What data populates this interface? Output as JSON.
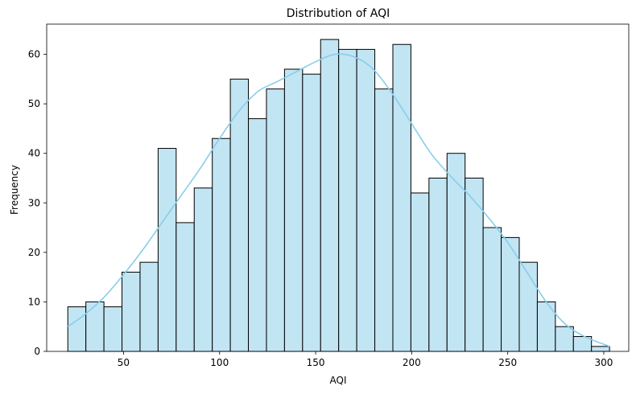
{
  "chart_data": {
    "type": "bar",
    "subtype": "histogram",
    "title": "Distribution of AQI",
    "xlabel": "AQI",
    "ylabel": "Frequency",
    "xlim": [
      10,
      313
    ],
    "ylim": [
      0,
      66.1
    ],
    "xticks": [
      50,
      100,
      150,
      200,
      250,
      300
    ],
    "yticks": [
      0,
      10,
      20,
      30,
      40,
      50,
      60
    ],
    "bin_start": 21,
    "bin_width": 9.4,
    "counts": [
      9,
      10,
      9,
      16,
      18,
      41,
      26,
      33,
      43,
      55,
      47,
      53,
      57,
      56,
      63,
      61,
      61,
      53,
      62,
      32,
      35,
      40,
      35,
      25,
      23,
      18,
      10,
      5,
      3,
      1
    ],
    "bar_color": "#c2e5f3",
    "edge_color": "#000000",
    "kde": {
      "color": "#87ceeb",
      "x": [
        21,
        30,
        40,
        50,
        60,
        70,
        80,
        90,
        100,
        110,
        120,
        130,
        140,
        150,
        160,
        170,
        180,
        190,
        200,
        210,
        220,
        230,
        240,
        250,
        260,
        270,
        280,
        290,
        303
      ],
      "y": [
        5,
        7.5,
        11,
        15.5,
        20.5,
        26,
        31.5,
        37,
        43,
        48.5,
        52.5,
        54.5,
        56.5,
        58.5,
        60,
        59.5,
        57,
        52,
        46,
        40,
        35.5,
        31.5,
        27,
        22,
        16,
        10,
        5.5,
        3,
        1
      ]
    }
  }
}
